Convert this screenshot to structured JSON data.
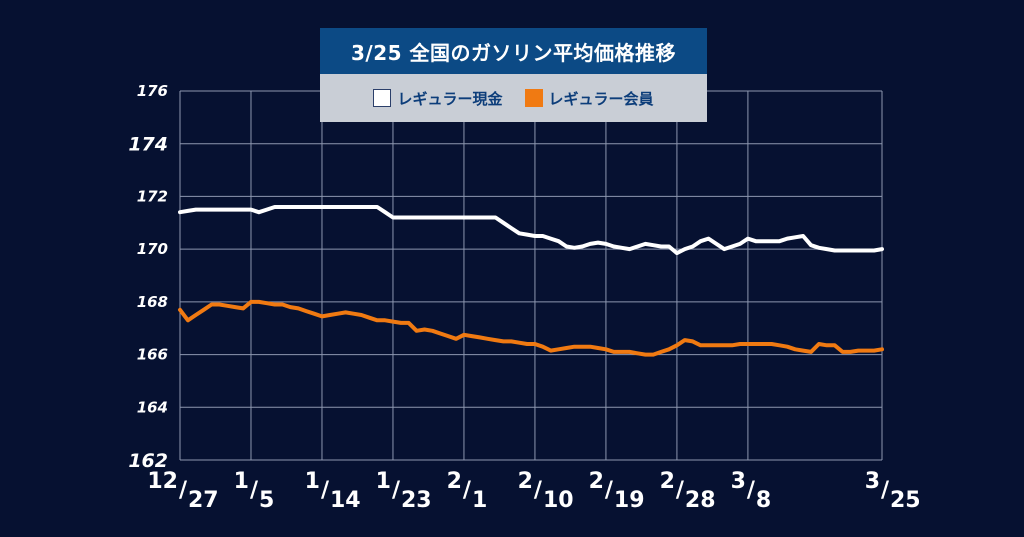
{
  "chart_data": {
    "type": "line",
    "title": "3/25 全国のガソリン平均価格推移",
    "xlabel": "",
    "ylabel": "",
    "ylim": [
      162,
      176
    ],
    "yticks": [
      162,
      164,
      166,
      168,
      170,
      172,
      174,
      176
    ],
    "xticks": [
      {
        "top": "12",
        "bottom": "27",
        "pos": 0
      },
      {
        "top": "1",
        "bottom": "5",
        "pos": 9
      },
      {
        "top": "1",
        "bottom": "14",
        "pos": 18
      },
      {
        "top": "1",
        "bottom": "23",
        "pos": 27
      },
      {
        "top": "2",
        "bottom": "1",
        "pos": 36
      },
      {
        "top": "2",
        "bottom": "10",
        "pos": 45
      },
      {
        "top": "2",
        "bottom": "19",
        "pos": 54
      },
      {
        "top": "2",
        "bottom": "28",
        "pos": 63
      },
      {
        "top": "3",
        "bottom": "8",
        "pos": 72
      },
      {
        "top": "3",
        "bottom": "25",
        "pos": 89
      }
    ],
    "x": [
      0,
      1,
      2,
      3,
      4,
      5,
      6,
      7,
      8,
      9,
      10,
      11,
      12,
      13,
      14,
      15,
      16,
      17,
      18,
      19,
      20,
      21,
      22,
      23,
      24,
      25,
      26,
      27,
      28,
      29,
      30,
      31,
      32,
      33,
      34,
      35,
      36,
      37,
      38,
      39,
      40,
      41,
      42,
      43,
      44,
      45,
      46,
      47,
      48,
      49,
      50,
      51,
      52,
      53,
      54,
      55,
      56,
      57,
      58,
      59,
      60,
      61,
      62,
      63,
      64,
      65,
      66,
      67,
      68,
      69,
      70,
      71,
      72,
      73,
      74,
      75,
      76,
      77,
      78,
      79,
      80,
      81,
      82,
      83,
      84,
      85,
      86,
      87,
      88,
      89
    ],
    "grid": true,
    "series": [
      {
        "name": "レギュラー現金",
        "color": "#ffffff",
        "values": [
          171.4,
          171.45,
          171.5,
          171.5,
          171.5,
          171.5,
          171.5,
          171.5,
          171.5,
          171.5,
          171.4,
          171.5,
          171.6,
          171.6,
          171.6,
          171.6,
          171.6,
          171.6,
          171.6,
          171.6,
          171.6,
          171.6,
          171.6,
          171.6,
          171.6,
          171.6,
          171.4,
          171.2,
          171.2,
          171.2,
          171.2,
          171.2,
          171.2,
          171.2,
          171.2,
          171.2,
          171.2,
          171.2,
          171.2,
          171.2,
          171.2,
          171.0,
          170.8,
          170.6,
          170.55,
          170.5,
          170.5,
          170.4,
          170.3,
          170.1,
          170.05,
          170.1,
          170.2,
          170.25,
          170.2,
          170.1,
          170.05,
          170.0,
          170.1,
          170.2,
          170.15,
          170.1,
          170.1,
          169.85,
          170.0,
          170.1,
          170.3,
          170.4,
          170.2,
          170.0,
          170.1,
          170.2,
          170.4,
          170.3,
          170.3,
          170.3,
          170.3,
          170.4,
          170.45,
          170.5,
          170.15,
          170.05,
          170.0,
          169.95,
          169.95,
          169.95,
          169.95,
          169.95,
          169.95,
          170.0
        ]
      },
      {
        "name": "レギュラー会員",
        "color": "#f07a12",
        "values": [
          167.7,
          167.3,
          167.5,
          167.7,
          167.9,
          167.9,
          167.85,
          167.8,
          167.75,
          168.0,
          168.0,
          167.95,
          167.9,
          167.9,
          167.8,
          167.75,
          167.65,
          167.55,
          167.45,
          167.5,
          167.55,
          167.6,
          167.55,
          167.5,
          167.4,
          167.3,
          167.3,
          167.25,
          167.2,
          167.2,
          166.9,
          166.95,
          166.9,
          166.8,
          166.7,
          166.6,
          166.75,
          166.7,
          166.65,
          166.6,
          166.55,
          166.5,
          166.5,
          166.45,
          166.4,
          166.4,
          166.3,
          166.15,
          166.2,
          166.25,
          166.3,
          166.3,
          166.3,
          166.25,
          166.2,
          166.1,
          166.1,
          166.1,
          166.05,
          166.0,
          166.0,
          166.1,
          166.2,
          166.35,
          166.55,
          166.5,
          166.35,
          166.35,
          166.35,
          166.35,
          166.35,
          166.4,
          166.4,
          166.4,
          166.4,
          166.4,
          166.35,
          166.3,
          166.2,
          166.15,
          166.1,
          166.4,
          166.35,
          166.35,
          166.1,
          166.1,
          166.15,
          166.15,
          166.15,
          166.2
        ]
      }
    ]
  },
  "legend": {
    "items": [
      {
        "label": "レギュラー現金",
        "swatch": "white"
      },
      {
        "label": "レギュラー会員",
        "swatch": "orange"
      }
    ]
  },
  "colors": {
    "background": "#061131",
    "title_bg": "#0c4a85",
    "legend_bg": "#c9ced6",
    "grid": "#8d97b0"
  }
}
